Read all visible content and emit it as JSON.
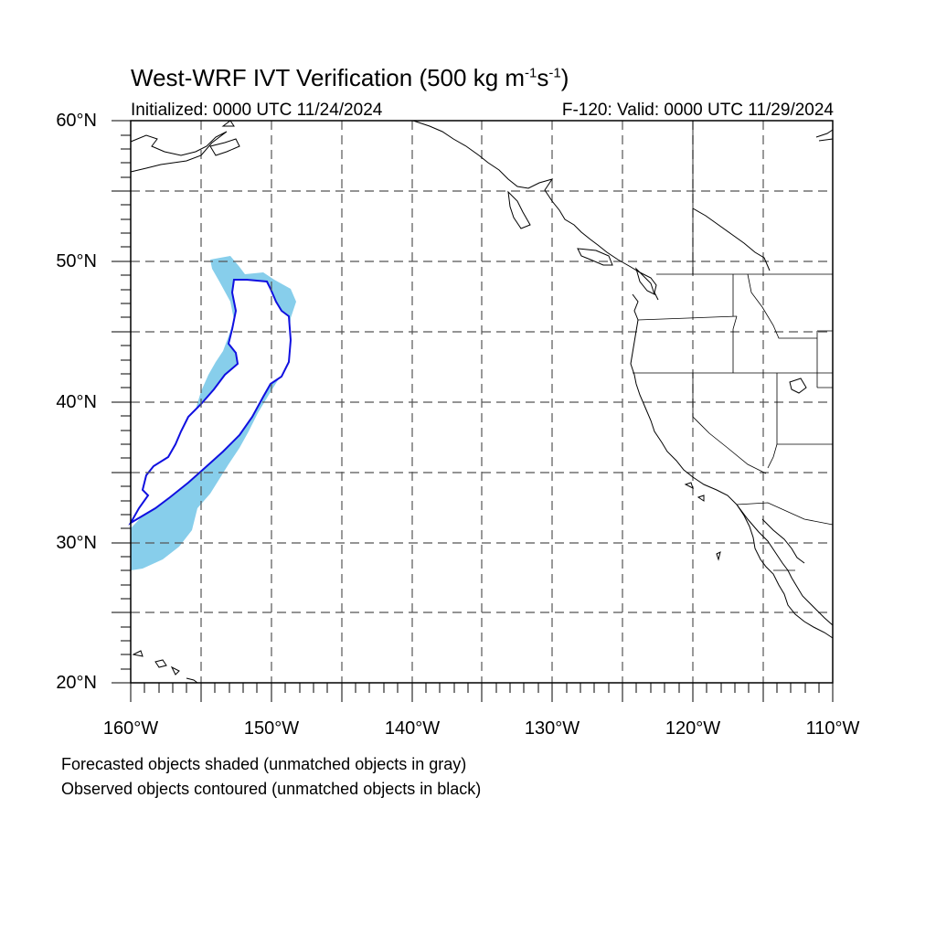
{
  "title": {
    "main": "West-WRF IVT Verification (500 kg m",
    "exp1": "-1",
    "mid": "s",
    "exp2": "-1",
    "end": ")"
  },
  "initialized": "Initialized: 0000 UTC 11/24/2024",
  "valid": "F-120: Valid: 0000 UTC 11/29/2024",
  "lat_labels": [
    "60°N",
    "50°N",
    "40°N",
    "30°N",
    "20°N"
  ],
  "lon_labels": [
    "160°W",
    "150°W",
    "140°W",
    "130°W",
    "120°W",
    "110°W"
  ],
  "legend": {
    "forecast": "Forecasted objects shaded (unmatched objects in gray)",
    "observed": "Observed objects contoured (unmatched objects in black)"
  },
  "map_extent": {
    "lon_min": -160,
    "lon_max": -110,
    "lat_min": 20,
    "lat_max": 60
  },
  "colors": {
    "forecast_fill": "#87ceeb",
    "observed_contour": "#1010e0",
    "coastline": "#000000",
    "grid": "#555555"
  }
}
